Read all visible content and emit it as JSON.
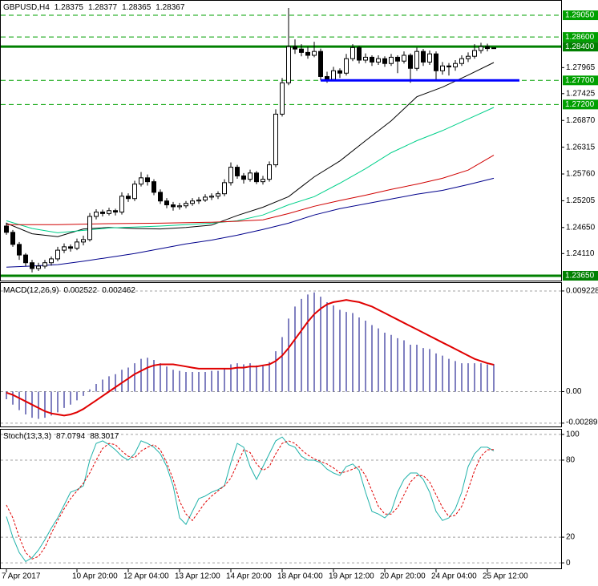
{
  "chart_data": [
    {
      "type": "candlestick",
      "title": "GBPUSD,H4",
      "categories": [
        "7 Apr 2017",
        null,
        null,
        null,
        null,
        null,
        null,
        null,
        null,
        null,
        null,
        "10 Apr 20:00",
        null,
        null,
        null,
        null,
        null,
        null,
        null,
        "12 Apr 04:00",
        null,
        null,
        null,
        null,
        null,
        null,
        null,
        "13 Apr 12:00",
        null,
        null,
        null,
        null,
        null,
        null,
        null,
        "14 Apr 20:00",
        null,
        null,
        null,
        null,
        null,
        null,
        null,
        "18 Apr 04:00",
        null,
        null,
        null,
        null,
        null,
        null,
        null,
        "19 Apr 12:00",
        null,
        null,
        null,
        null,
        null,
        null,
        null,
        "20 Apr 20:00",
        null,
        null,
        null,
        null,
        null,
        null,
        null,
        "24 Apr 04:00",
        null,
        null,
        null,
        null,
        null,
        null,
        null,
        "25 Apr 12:00",
        null
      ],
      "open": [
        1.2468,
        1.2455,
        1.243,
        1.2408,
        1.2392,
        1.238,
        1.2385,
        1.2392,
        1.24,
        1.2418,
        1.2425,
        1.2422,
        1.2435,
        1.244,
        1.2488,
        1.2497,
        1.2494,
        1.25,
        1.2497,
        1.253,
        1.2525,
        1.2555,
        1.2568,
        1.256,
        1.2538,
        1.252,
        1.2512,
        1.2508,
        1.251,
        1.2515,
        1.252,
        1.2522,
        1.2528,
        1.253,
        1.2535,
        1.2558,
        1.259,
        1.2572,
        1.2565,
        1.2578,
        1.256,
        1.2565,
        1.2595,
        1.27,
        1.2765,
        1.284,
        1.2835,
        1.2828,
        1.2822,
        1.283,
        1.2778,
        1.2772,
        1.279,
        1.2785,
        1.2815,
        1.2838,
        1.2812,
        1.2818,
        1.2808,
        1.2815,
        1.2805,
        1.2818,
        1.281,
        1.2822,
        1.2795,
        1.283,
        1.2808,
        1.2825,
        1.279,
        1.28,
        1.2798,
        1.2805,
        1.2815,
        1.282,
        1.2832,
        1.284,
        1.28375
      ],
      "high": [
        1.2475,
        1.246,
        1.2435,
        1.2412,
        1.2398,
        1.2392,
        1.2398,
        1.2405,
        1.2425,
        1.2432,
        1.243,
        1.2442,
        1.2448,
        1.2495,
        1.2503,
        1.2502,
        1.2506,
        1.2504,
        1.2538,
        1.2536,
        1.2562,
        1.258,
        1.2575,
        1.2565,
        1.2544,
        1.2526,
        1.2518,
        1.2516,
        1.252,
        1.2526,
        1.2528,
        1.2534,
        1.2536,
        1.254,
        1.2565,
        1.26,
        1.2595,
        1.2578,
        1.2585,
        1.2582,
        1.2572,
        1.2602,
        1.271,
        1.2775,
        1.292,
        1.2855,
        1.2845,
        1.284,
        1.285,
        1.2836,
        1.2788,
        1.2798,
        1.2795,
        1.2825,
        1.2845,
        1.2842,
        1.2826,
        1.2822,
        1.2822,
        1.282,
        1.2825,
        1.2822,
        1.283,
        1.2826,
        1.2838,
        1.2835,
        1.2832,
        1.283,
        1.2808,
        1.2806,
        1.2812,
        1.2822,
        1.2828,
        1.2845,
        1.2848,
        1.2846,
        1.28377
      ],
      "low": [
        1.245,
        1.2425,
        1.2398,
        1.2385,
        1.2372,
        1.2375,
        1.238,
        1.2386,
        1.2395,
        1.2412,
        1.2415,
        1.2418,
        1.2428,
        1.2436,
        1.2482,
        1.2488,
        1.249,
        1.249,
        1.2492,
        1.2518,
        1.252,
        1.255,
        1.2552,
        1.2532,
        1.2514,
        1.2505,
        1.25,
        1.2502,
        1.2505,
        1.251,
        1.2514,
        1.2518,
        1.2522,
        1.2524,
        1.253,
        1.2552,
        1.2566,
        1.2556,
        1.256,
        1.2555,
        1.2554,
        1.256,
        1.259,
        1.2695,
        1.276,
        1.2825,
        1.282,
        1.2815,
        1.2818,
        1.277,
        1.2765,
        1.2768,
        1.2775,
        1.278,
        1.281,
        1.2805,
        1.2806,
        1.28,
        1.2802,
        1.2798,
        1.28,
        1.2785,
        1.2805,
        1.2765,
        1.279,
        1.28,
        1.2802,
        1.2772,
        1.2782,
        1.278,
        1.279,
        1.28,
        1.2808,
        1.2815,
        1.2826,
        1.283,
        1.28365
      ],
      "close": [
        1.2455,
        1.243,
        1.2408,
        1.2392,
        1.238,
        1.2385,
        1.2392,
        1.24,
        1.2418,
        1.2425,
        1.2422,
        1.2435,
        1.244,
        1.2488,
        1.2497,
        1.2494,
        1.25,
        1.2497,
        1.253,
        1.2525,
        1.2555,
        1.2568,
        1.256,
        1.2538,
        1.252,
        1.2512,
        1.2508,
        1.251,
        1.2515,
        1.252,
        1.2522,
        1.2528,
        1.253,
        1.2535,
        1.2558,
        1.259,
        1.2572,
        1.2565,
        1.2578,
        1.256,
        1.2565,
        1.2595,
        1.27,
        1.2765,
        1.284,
        1.2835,
        1.2828,
        1.2822,
        1.283,
        1.2778,
        1.2772,
        1.279,
        1.2785,
        1.2815,
        1.2838,
        1.2812,
        1.2818,
        1.2808,
        1.2815,
        1.2805,
        1.2818,
        1.281,
        1.2822,
        1.2795,
        1.283,
        1.2808,
        1.2825,
        1.279,
        1.28,
        1.2798,
        1.2805,
        1.2815,
        1.282,
        1.2832,
        1.284,
        1.2836,
        1.28367
      ],
      "up_color": "#ffffff",
      "down_color": "#000000",
      "ylim": [
        1.2355,
        1.2935
      ],
      "yticks": [
        {
          "value": 1.27965,
          "label": "1.27965"
        },
        {
          "value": 1.27425,
          "label": "1.27425"
        },
        {
          "value": 1.2687,
          "label": "1.26870"
        },
        {
          "value": 1.26315,
          "label": "1.26315"
        },
        {
          "value": 1.2576,
          "label": "1.25760"
        },
        {
          "value": 1.25205,
          "label": "1.25205"
        },
        {
          "value": 1.2465,
          "label": "1.24650"
        },
        {
          "value": 1.2411,
          "label": "1.24110"
        }
      ],
      "levels": [
        {
          "value": 1.2905,
          "label": "1.29050",
          "color": "#00a000",
          "dashed": true
        },
        {
          "value": 1.286,
          "label": "1.28600",
          "color": "#00a000",
          "dashed": true
        },
        {
          "value": 1.284,
          "label": "1.28400",
          "color": "#008000",
          "dashed": false
        },
        {
          "value": 1.277,
          "label": "1.27700",
          "color": "#00a000",
          "dashed": true
        },
        {
          "value": 1.272,
          "label": "1.27200",
          "color": "#00a000",
          "dashed": true
        },
        {
          "value": 1.2365,
          "label": "1.23650",
          "color": "#008000",
          "dashed": false
        }
      ],
      "support": {
        "value": 1.277,
        "x": [
          49,
          80
        ],
        "color": "#0000ff"
      },
      "overlays": [
        {
          "color": "#000000",
          "x": [
            0,
            4,
            8,
            12,
            16,
            20,
            24,
            28,
            32,
            36,
            40,
            44,
            48,
            52,
            56,
            60,
            64,
            68,
            72,
            76
          ],
          "values": [
            1.2474,
            1.2452,
            1.2446,
            1.2462,
            1.2465,
            1.2463,
            1.2462,
            1.2465,
            1.247,
            1.249,
            1.2507,
            1.2529,
            1.257,
            1.2603,
            1.2645,
            1.2686,
            1.2736,
            1.2756,
            1.2781,
            1.2807
          ]
        },
        {
          "color": "#00d08a",
          "x": [
            0,
            4,
            8,
            12,
            16,
            20,
            24,
            28,
            32,
            36,
            40,
            44,
            48,
            52,
            56,
            60,
            64,
            68,
            72,
            76
          ],
          "values": [
            1.2479,
            1.2463,
            1.2454,
            1.2459,
            1.2464,
            1.2466,
            1.2468,
            1.2471,
            1.2474,
            1.2479,
            1.2491,
            1.2512,
            1.2529,
            1.2557,
            1.2587,
            1.262,
            1.2645,
            1.2666,
            1.269,
            1.2714
          ]
        },
        {
          "color": "#d00000",
          "x": [
            0,
            8,
            16,
            24,
            32,
            36,
            40,
            44,
            48,
            52,
            56,
            60,
            64,
            68,
            72,
            76
          ],
          "values": [
            1.2471,
            1.2471,
            1.2473,
            1.2474,
            1.2476,
            1.2478,
            1.2481,
            1.2494,
            1.2509,
            1.2521,
            1.2532,
            1.2544,
            1.2555,
            1.2567,
            1.2584,
            1.2615
          ]
        },
        {
          "color": "#00008b",
          "x": [
            0,
            4,
            8,
            12,
            16,
            20,
            24,
            28,
            32,
            36,
            40,
            44,
            48,
            52,
            56,
            60,
            64,
            68,
            72,
            76
          ],
          "values": [
            1.2383,
            1.2385,
            1.2388,
            1.2395,
            1.2403,
            1.2411,
            1.2421,
            1.2431,
            1.2439,
            1.2449,
            1.2461,
            1.2474,
            1.2491,
            1.2504,
            1.2514,
            1.2524,
            1.2534,
            1.2542,
            1.2554,
            1.2567
          ]
        }
      ]
    },
    {
      "type": "macd",
      "title": "MACD(12,26,9)",
      "histogram": {
        "color": "#000080",
        "values": [
          -0.0007,
          -0.0012,
          -0.0017,
          -0.0021,
          -0.0024,
          -0.0025,
          -0.0024,
          -0.0022,
          -0.0019,
          -0.0015,
          -0.0012,
          -0.0008,
          -0.0004,
          0.0002,
          0.0007,
          0.0011,
          0.0014,
          0.0016,
          0.002,
          0.0022,
          0.0026,
          0.003,
          0.0031,
          0.0029,
          0.0026,
          0.0023,
          0.002,
          0.0019,
          0.0018,
          0.0018,
          0.0018,
          0.0018,
          0.0019,
          0.0019,
          0.0021,
          0.0025,
          0.0026,
          0.0025,
          0.0026,
          0.0024,
          0.0024,
          0.0027,
          0.0037,
          0.005,
          0.0067,
          0.0078,
          0.0085,
          0.0089,
          0.0091,
          0.0087,
          0.0082,
          0.0079,
          0.0075,
          0.0073,
          0.0072,
          0.0068,
          0.0065,
          0.0061,
          0.0058,
          0.0054,
          0.0052,
          0.0049,
          0.0047,
          0.0043,
          0.0043,
          0.004,
          0.0039,
          0.0035,
          0.0033,
          0.003,
          0.0028,
          0.0026,
          0.0026,
          0.0026,
          0.0026,
          0.0025,
          0.002522
        ]
      },
      "signal": {
        "color": "#e00000",
        "values": [
          -0.0001,
          -0.0003,
          -0.0006,
          -0.0009,
          -0.0012,
          -0.0015,
          -0.0018,
          -0.002,
          -0.0021,
          -0.0022,
          -0.0021,
          -0.0019,
          -0.0016,
          -0.0012,
          -0.0008,
          -0.0004,
          0.0,
          0.0004,
          0.0008,
          0.0012,
          0.0016,
          0.0019,
          0.0022,
          0.0024,
          0.0025,
          0.0025,
          0.0025,
          0.0024,
          0.0023,
          0.0022,
          0.0021,
          0.0021,
          0.0021,
          0.0021,
          0.0021,
          0.0021,
          0.0022,
          0.0022,
          0.0023,
          0.0023,
          0.0024,
          0.0025,
          0.0028,
          0.0033,
          0.004,
          0.0048,
          0.0056,
          0.0064,
          0.0071,
          0.0076,
          0.008,
          0.0082,
          0.0083,
          0.0084,
          0.0083,
          0.0082,
          0.008,
          0.0078,
          0.0075,
          0.0072,
          0.0069,
          0.0066,
          0.0063,
          0.006,
          0.0057,
          0.0054,
          0.0051,
          0.0048,
          0.0045,
          0.0042,
          0.0039,
          0.0036,
          0.0033,
          0.003,
          0.0028,
          0.0026,
          0.002462
        ]
      },
      "ylim": [
        -0.0032,
        0.00996
      ],
      "yticks": [
        0.009228,
        {
          "value": 0,
          "label": "0.00"
        },
        -0.002895
      ],
      "grid": true
    },
    {
      "type": "stochastic",
      "title": "Stoch(13,3,3)",
      "main": {
        "color": "#20b2aa",
        "values": [
          36,
          20,
          8,
          1,
          4,
          10,
          18,
          27,
          35,
          45,
          55,
          57,
          60,
          80,
          93,
          95,
          92,
          88,
          83,
          80,
          85,
          95,
          93,
          90,
          85,
          75,
          60,
          35,
          30,
          40,
          50,
          52,
          55,
          57,
          60,
          78,
          93,
          90,
          75,
          65,
          75,
          85,
          95,
          98,
          92,
          90,
          83,
          80,
          80,
          78,
          73,
          70,
          68,
          75,
          77,
          72,
          55,
          40,
          38,
          35,
          40,
          55,
          65,
          70,
          70,
          65,
          55,
          40,
          33,
          35,
          42,
          55,
          75,
          85,
          90,
          90,
          87.0794
        ]
      },
      "signal": {
        "color": "#e00000",
        "dashed": true,
        "values": [
          45,
          35,
          20,
          8,
          3,
          5,
          12,
          23,
          33,
          42,
          50,
          56,
          62,
          70,
          80,
          89,
          93,
          92,
          87,
          83,
          82,
          87,
          90,
          92,
          88,
          78,
          65,
          48,
          38,
          33,
          40,
          47,
          52,
          56,
          60,
          66,
          77,
          88,
          86,
          77,
          72,
          75,
          85,
          93,
          95,
          93,
          88,
          84,
          81,
          79,
          77,
          74,
          70,
          71,
          73,
          75,
          68,
          56,
          44,
          38,
          38,
          43,
          53,
          63,
          68,
          68,
          63,
          53,
          43,
          36,
          37,
          44,
          57,
          72,
          83,
          88,
          88.3017
        ]
      },
      "ylim": [
        -4.3,
        103.7
      ],
      "yticks": [
        0,
        20,
        80,
        100
      ],
      "grid": true
    }
  ]
}
